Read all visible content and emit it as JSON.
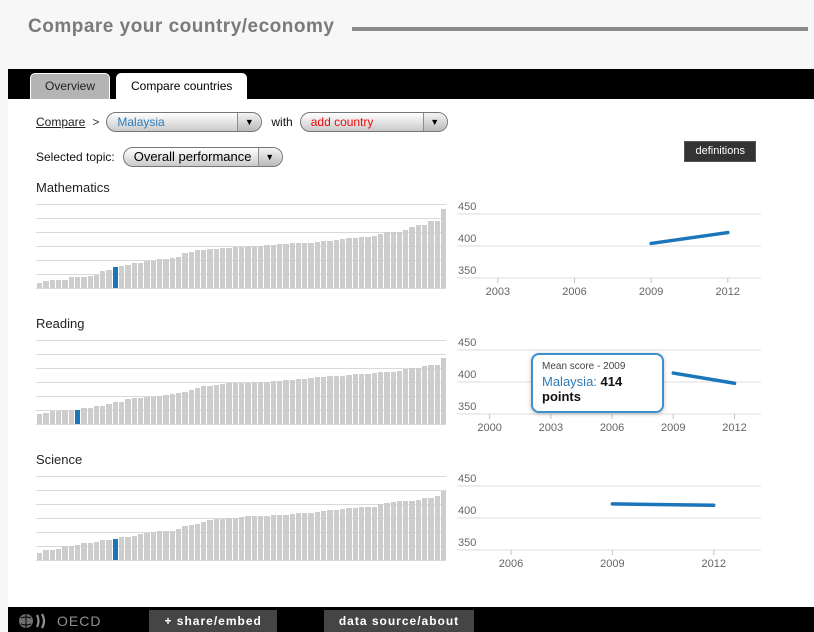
{
  "header": {
    "title": "Compare your country/economy"
  },
  "tabs": [
    {
      "label": "Overview",
      "active": false
    },
    {
      "label": "Compare countries",
      "active": true
    }
  ],
  "controls": {
    "compare_link": "Compare",
    "separator": ">",
    "country_select_value": "Malaysia",
    "with_label": "with",
    "add_country_select_value": "add country",
    "dropdown_arrow": "▼",
    "topic_label": "Selected topic:",
    "topic_select_value": "Overall performance",
    "definitions_button": "definitions"
  },
  "colors": {
    "accent_blue": "#1b75bb",
    "bar_gray": "#cdcdcd",
    "add_country_red": "#ea0b0b",
    "gridline": "#d9d9d9",
    "tick_label": "#666666"
  },
  "tooltip": {
    "attached_section": "Reading",
    "title": "Mean score - 2009",
    "country_label": "Malaysia:",
    "value_text": " 414 points"
  },
  "footer": {
    "logo_text": "OECD",
    "share_button": "+ share/embed",
    "source_button": "data source/about"
  },
  "chart_data": [
    {
      "section": "Mathematics",
      "bar": {
        "type": "bar",
        "description": "PISA mean mathematics scores by country, ascending; highlighted bar is Malaysia",
        "highlight_index": 12,
        "highlight_label": "Malaysia",
        "baseline_score": 350,
        "values": [
          368,
          372,
          375,
          376,
          376,
          386,
          388,
          388,
          391,
          394,
          407,
          409,
          421,
          423,
          427,
          432,
          434,
          439,
          440,
          445,
          448,
          449,
          453,
          466,
          471,
          477,
          478,
          479,
          481,
          482,
          484,
          485,
          487,
          489,
          490,
          491,
          493,
          494,
          495,
          495,
          499,
          500,
          501,
          501,
          504,
          505,
          506,
          511,
          514,
          515,
          518,
          519,
          521,
          523,
          531,
          535,
          536,
          538,
          544,
          554,
          560,
          561,
          573,
          573,
          613
        ]
      },
      "line": {
        "type": "line",
        "series_name": "Malaysia",
        "x": [
          2009,
          2012
        ],
        "values": [
          404,
          421
        ],
        "xticks": [
          2003,
          2006,
          2009,
          2012
        ],
        "yticks": [
          450,
          400,
          350
        ],
        "xlim": [
          2001.4,
          2013.3
        ],
        "ylim": [
          340,
          460
        ]
      }
    },
    {
      "section": "Reading",
      "bar": {
        "type": "bar",
        "description": "PISA mean reading scores by country, ascending; highlighted bar is Malaysia",
        "highlight_index": 6,
        "highlight_label": "Malaysia",
        "baseline_score": 350,
        "values": [
          384,
          388,
          393,
          394,
          396,
          396,
          398,
          403,
          404,
          410,
          411,
          416,
          422,
          424,
          432,
          436,
          438,
          441,
          441,
          442,
          446,
          449,
          452,
          456,
          463,
          469,
          475,
          477,
          481,
          483,
          485,
          486,
          488,
          488,
          489,
          490,
          490,
          492,
          493,
          496,
          498,
          499,
          499,
          504,
          505,
          508,
          509,
          509,
          511,
          512,
          516,
          516,
          518,
          520,
          523,
          523,
          524,
          526,
          533,
          536,
          538,
          542,
          545,
          547,
          570
        ]
      },
      "line": {
        "type": "line",
        "series_name": "Malaysia",
        "x": [
          2009,
          2012
        ],
        "values": [
          414,
          398
        ],
        "xticks": [
          2000,
          2003,
          2006,
          2009,
          2012
        ],
        "yticks": [
          450,
          400,
          350
        ],
        "xlim": [
          1998.4,
          2013.3
        ],
        "ylim": [
          340,
          460
        ]
      }
    },
    {
      "section": "Science",
      "bar": {
        "type": "bar",
        "description": "PISA mean science scores by country, ascending; highlighted bar is Malaysia",
        "highlight_index": 12,
        "highlight_label": "Malaysia",
        "baseline_score": 350,
        "values": [
          373,
          382,
          384,
          388,
          397,
          398,
          399,
          405,
          406,
          410,
          415,
          416,
          420,
          425,
          428,
          429,
          438,
          439,
          444,
          445,
          446,
          448,
          452,
          463,
          467,
          471,
          478,
          482,
          485,
          486,
          489,
          491,
          494,
          495,
          496,
          497,
          498,
          499,
          500,
          501,
          502,
          505,
          506,
          508,
          511,
          514,
          515,
          516,
          521,
          522,
          524,
          525,
          526,
          528,
          538,
          541,
          544,
          545,
          546,
          547,
          551,
          555,
          558,
          562,
          580
        ]
      },
      "line": {
        "type": "line",
        "series_name": "Malaysia",
        "x": [
          2009,
          2012
        ],
        "values": [
          422,
          420
        ],
        "xticks": [
          2006,
          2009,
          2012
        ],
        "yticks": [
          450,
          400,
          350
        ],
        "xlim": [
          2004.4,
          2013.4
        ],
        "ylim": [
          340,
          460
        ]
      }
    }
  ]
}
